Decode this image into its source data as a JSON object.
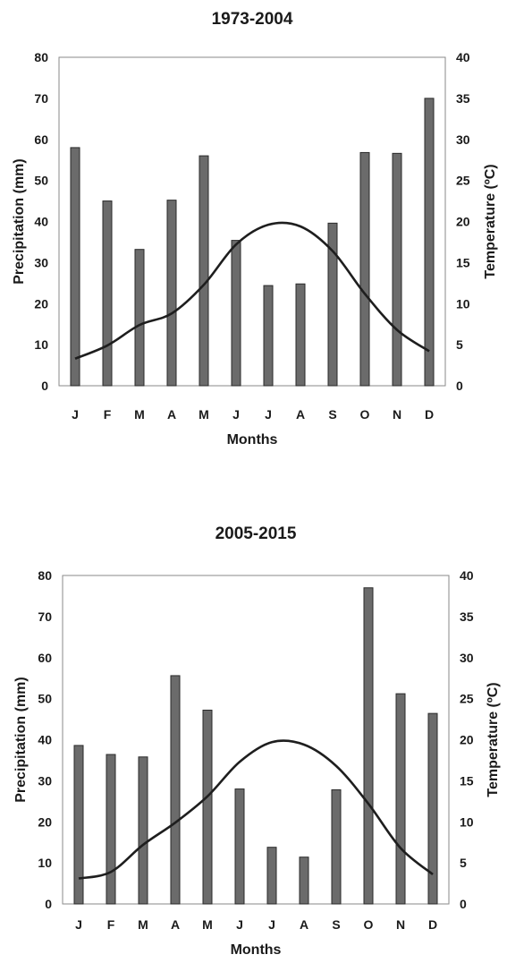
{
  "chart_data": [
    {
      "type": "bar",
      "title": "1973-2004",
      "xlabel": "Months",
      "ylabel": "Precipitation (mm)",
      "y2label": "Temperature (ºC)",
      "categories": [
        "J",
        "F",
        "M",
        "A",
        "M",
        "J",
        "J",
        "A",
        "S",
        "O",
        "N",
        "D"
      ],
      "ylim": [
        0,
        80
      ],
      "y2lim": [
        0,
        40
      ],
      "yticks": [
        "0",
        "10",
        "20",
        "30",
        "40",
        "50",
        "60",
        "70",
        "80"
      ],
      "y2ticks": [
        "0",
        "5",
        "10",
        "15",
        "20",
        "25",
        "30",
        "35",
        "40"
      ],
      "grid": false,
      "series": [
        {
          "kind": "bar",
          "axis": "left",
          "values": [
            58,
            45,
            33.2,
            45.2,
            56,
            35.4,
            24.4,
            24.8,
            39.6,
            56.8,
            56.6,
            70
          ]
        },
        {
          "kind": "line",
          "axis": "right",
          "values": [
            3.3,
            4.9,
            7.4,
            8.8,
            12.3,
            17.2,
            19.6,
            19.4,
            16.4,
            11.2,
            6.8,
            4.2
          ]
        }
      ]
    },
    {
      "type": "bar",
      "title": "2005-2015",
      "xlabel": "Months",
      "ylabel": "Precipitation (mm)",
      "y2label": "Temperature (ºC)",
      "categories": [
        "J",
        "F",
        "M",
        "A",
        "M",
        "J",
        "J",
        "A",
        "S",
        "O",
        "N",
        "D"
      ],
      "ylim": [
        0,
        80
      ],
      "y2lim": [
        0,
        40
      ],
      "yticks": [
        "0",
        "10",
        "20",
        "30",
        "40",
        "50",
        "60",
        "70",
        "80"
      ],
      "y2ticks": [
        "0",
        "5",
        "10",
        "15",
        "20",
        "25",
        "30",
        "35",
        "40"
      ],
      "grid": false,
      "series": [
        {
          "kind": "bar",
          "axis": "left",
          "values": [
            38.6,
            36.4,
            35.8,
            55.6,
            47.2,
            28,
            13.8,
            11.4,
            27.8,
            77,
            51.2,
            46.4
          ]
        },
        {
          "kind": "line",
          "axis": "right",
          "values": [
            3.1,
            3.9,
            7.2,
            9.9,
            13.1,
            17.3,
            19.7,
            19.4,
            16.8,
            12.2,
            6.8,
            3.6
          ]
        }
      ]
    }
  ]
}
